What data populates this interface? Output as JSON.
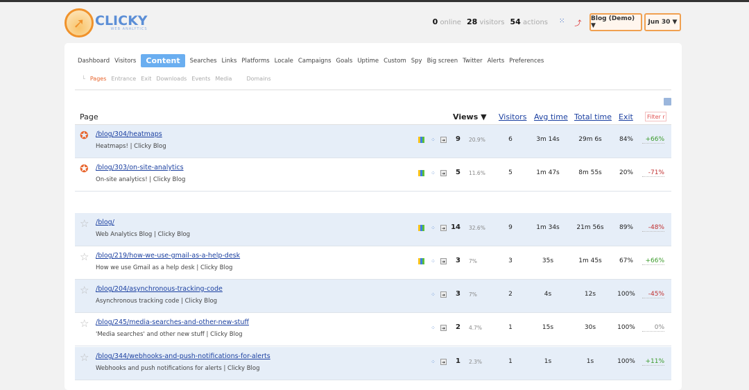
{
  "header": {
    "logo": "CLICKY",
    "logo_sub": "WEB ANALYTICS",
    "online": "0",
    "online_label": "online",
    "visitors": "28",
    "visitors_label": "visitors",
    "actions": "54",
    "actions_label": "actions",
    "site": "Blog (Demo) ▼",
    "date": "Jun 30 ▼"
  },
  "nav": [
    "Dashboard",
    "Visitors",
    "Content",
    "Searches",
    "Links",
    "Platforms",
    "Locale",
    "Campaigns",
    "Goals",
    "Uptime",
    "Custom",
    "Spy",
    "Big screen",
    "Twitter",
    "Alerts",
    "Preferences"
  ],
  "subnav": [
    "Pages",
    "Entrance",
    "Exit",
    "Downloads",
    "Events",
    "Media",
    "Domains"
  ],
  "table": {
    "headers": {
      "page": "Page",
      "views": "Views ▼",
      "visitors": "Visitors",
      "avg": "Avg time",
      "total": "Total time",
      "exit": "Exit"
    },
    "filter_placeholder": "Filter r",
    "rows": [
      {
        "url": "/blog/304/heatmaps",
        "title": "Heatmaps! | Clicky Blog",
        "views": "9",
        "pct": "20.9%",
        "visitors": "6",
        "avg": "3m 14s",
        "total": "29m 6s",
        "exit": "84%",
        "change": "+66%",
        "pinned": true,
        "heatmap": true
      },
      {
        "url": "/blog/303/on-site-analytics",
        "title": "On-site analytics! | Clicky Blog",
        "views": "5",
        "pct": "11.6%",
        "visitors": "5",
        "avg": "1m 47s",
        "total": "8m 55s",
        "exit": "20%",
        "change": "-71%",
        "pinned": true,
        "heatmap": true
      },
      {
        "url": "/blog/",
        "title": "Web Analytics Blog | Clicky Blog",
        "views": "14",
        "pct": "32.6%",
        "visitors": "9",
        "avg": "1m 34s",
        "total": "21m 56s",
        "exit": "89%",
        "change": "-48%",
        "pinned": false,
        "heatmap": true
      },
      {
        "url": "/blog/219/how-we-use-gmail-as-a-help-desk",
        "title": "How we use Gmail as a help desk | Clicky Blog",
        "views": "3",
        "pct": "7%",
        "visitors": "3",
        "avg": "35s",
        "total": "1m 45s",
        "exit": "67%",
        "change": "+66%",
        "pinned": false,
        "heatmap": true
      },
      {
        "url": "/blog/204/asynchronous-tracking-code",
        "title": "Asynchronous tracking code | Clicky Blog",
        "views": "3",
        "pct": "7%",
        "visitors": "2",
        "avg": "4s",
        "total": "12s",
        "exit": "100%",
        "change": "-45%",
        "pinned": false,
        "heatmap": false
      },
      {
        "url": "/blog/245/media-searches-and-other-new-stuff",
        "title": "'Media searches' and other new stuff | Clicky Blog",
        "views": "2",
        "pct": "4.7%",
        "visitors": "1",
        "avg": "15s",
        "total": "30s",
        "exit": "100%",
        "change": "0%",
        "pinned": false,
        "heatmap": false
      },
      {
        "url": "/blog/344/webhooks-and-push-notifications-for-alerts",
        "title": "Webhooks and push notifications for alerts | Clicky Blog",
        "views": "1",
        "pct": "2.3%",
        "visitors": "1",
        "avg": "1s",
        "total": "1s",
        "exit": "100%",
        "change": "+11%",
        "pinned": false,
        "heatmap": false
      }
    ]
  },
  "colors": {
    "accent": "#6aaef0",
    "orange": "#f0922b",
    "positive": "#3a9a2a",
    "negative": "#c03030",
    "row_highlight": "#e6eef8"
  }
}
